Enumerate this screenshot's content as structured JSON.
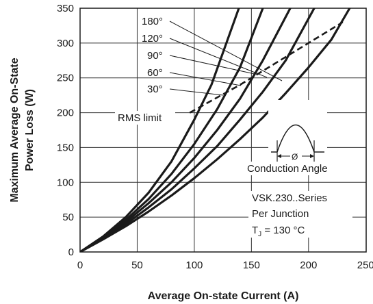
{
  "chart_data": {
    "type": "line",
    "xlabel": "Average On-state Current (A)",
    "ylabel_lines": [
      "Maximum Average On-State",
      "Power Loss (W)"
    ],
    "xlim": [
      0,
      240
    ],
    "ylim": [
      0,
      350
    ],
    "xticks": [
      0,
      50,
      100,
      150,
      200,
      250
    ],
    "yticks": [
      0,
      50,
      100,
      150,
      200,
      250,
      300,
      350
    ],
    "grid": true,
    "series": [
      {
        "name": "180°",
        "x": [
          0,
          20,
          40,
          60,
          80,
          100,
          115,
          139
        ],
        "y": [
          0,
          22,
          50,
          85,
          130,
          190,
          240,
          350
        ]
      },
      {
        "name": "120°",
        "x": [
          0,
          20,
          40,
          60,
          80,
          100,
          120,
          140,
          160
        ],
        "y": [
          0,
          21,
          46,
          76,
          112,
          155,
          205,
          265,
          350
        ]
      },
      {
        "name": "90°",
        "x": [
          0,
          20,
          40,
          60,
          80,
          100,
          120,
          140,
          160,
          184
        ],
        "y": [
          0,
          20,
          43,
          70,
          100,
          135,
          175,
          220,
          275,
          350
        ]
      },
      {
        "name": "60°",
        "x": [
          0,
          20,
          40,
          60,
          80,
          100,
          120,
          140,
          160,
          180,
          205
        ],
        "y": [
          0,
          19,
          40,
          64,
          90,
          120,
          152,
          190,
          230,
          275,
          350
        ]
      },
      {
        "name": "30°",
        "x": [
          0,
          20,
          40,
          60,
          80,
          100,
          120,
          140,
          160,
          180,
          200,
          220,
          236
        ],
        "y": [
          0,
          18,
          37,
          58,
          81,
          106,
          133,
          162,
          193,
          228,
          265,
          305,
          350
        ]
      }
    ],
    "rms_limit": {
      "label": "RMS limit",
      "x": [
        96,
        140,
        180,
        230
      ],
      "y": [
        200,
        240,
        280,
        330
      ]
    },
    "angle_labels": [
      "180°",
      "120°",
      "90°",
      "60°",
      "30°"
    ],
    "annotations": {
      "conduction_angle": "Conduction Angle",
      "phi_symbol": "Ø",
      "series_name": "VSK.230..Series",
      "per_junction": "Per Junction",
      "tj_label": "T",
      "tj_sub": "J",
      "tj_value": " = 130 °C"
    },
    "colors": {
      "line": "#1a1a1a",
      "grid": "#333333",
      "background": "#ffffff"
    }
  }
}
